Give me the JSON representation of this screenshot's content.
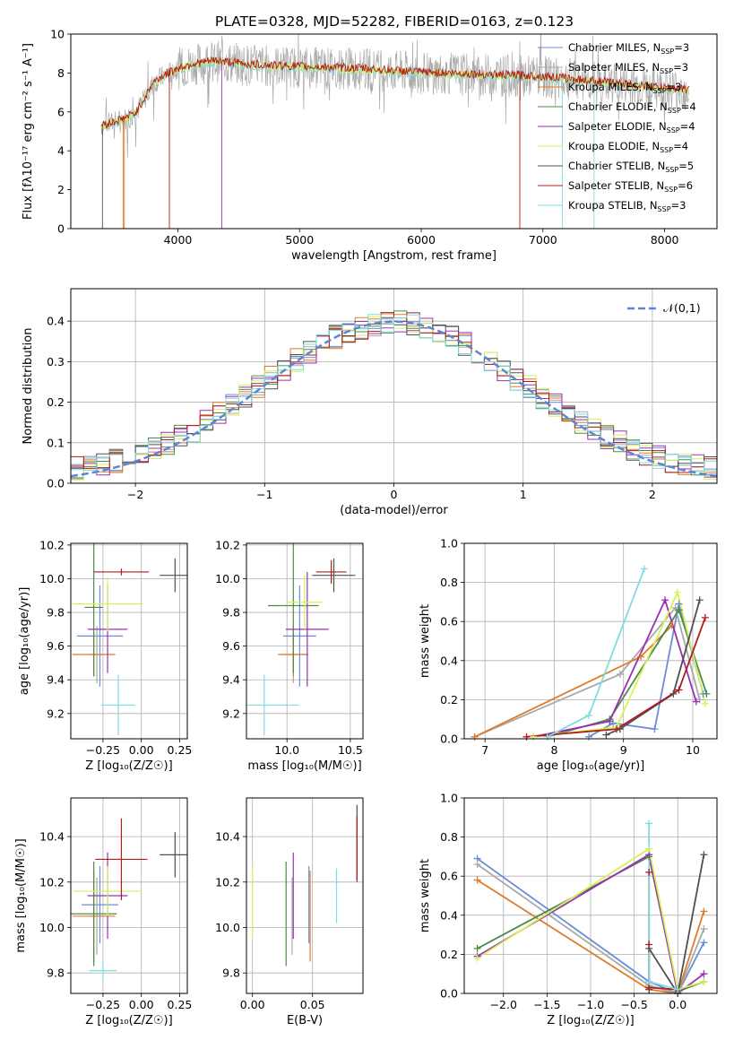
{
  "figure": {
    "title": "PLATE=0328, MJD=52282, FIBERID=0163, z=0.123"
  },
  "series_styles": [
    {
      "name": "Chabrier MILES",
      "suffix": "=3",
      "color": "#6a8fd6"
    },
    {
      "name": "Salpeter MILES",
      "suffix": "=3",
      "color": "#a9a9a9"
    },
    {
      "name": "Kroupa MILES",
      "suffix": "=3",
      "color": "#e07b28"
    },
    {
      "name": "Chabrier ELODIE",
      "suffix": "=4",
      "color": "#4c8a4c"
    },
    {
      "name": "Salpeter ELODIE",
      "suffix": "=4",
      "color": "#9b30b0"
    },
    {
      "name": "Kroupa ELODIE",
      "suffix": "=4",
      "color": "#d7f05a"
    },
    {
      "name": "Chabrier STELIB",
      "suffix": "=5",
      "color": "#505050"
    },
    {
      "name": "Salpeter STELIB",
      "suffix": "=6",
      "color": "#b01c1c"
    },
    {
      "name": "Kroupa STELIB",
      "suffix": "=3",
      "color": "#7fdce0"
    }
  ],
  "chart_data": [
    {
      "id": "spectrum",
      "type": "line",
      "xlabel": "wavelength [Angstrom, rest frame]",
      "ylabel": "Flux [fλ10⁻¹⁷ erg cm⁻² s⁻¹ A⁻¹]",
      "xlim": [
        3120,
        8430
      ],
      "ylim": [
        0,
        10
      ],
      "xticks": [
        4000,
        5000,
        6000,
        7000,
        8000
      ],
      "yticks": [
        0,
        2,
        4,
        6,
        8,
        10
      ],
      "legend_position": "top-right",
      "legend_subscript": "SSP",
      "legend_prefix": "N",
      "continuum": [
        [
          3370,
          5.3
        ],
        [
          3450,
          5.4
        ],
        [
          3550,
          5.6
        ],
        [
          3650,
          5.9
        ],
        [
          3720,
          6.6
        ],
        [
          3800,
          7.5
        ],
        [
          3900,
          7.9
        ],
        [
          4000,
          8.2
        ],
        [
          4100,
          8.4
        ],
        [
          4300,
          8.6
        ],
        [
          4600,
          8.4
        ],
        [
          5000,
          8.3
        ],
        [
          5500,
          8.2
        ],
        [
          6000,
          8.0
        ],
        [
          6500,
          7.9
        ],
        [
          7000,
          7.8
        ],
        [
          7500,
          7.5
        ],
        [
          8000,
          7.2
        ],
        [
          8200,
          7.1
        ]
      ]
    },
    {
      "id": "residuals",
      "type": "histogram",
      "xlabel": "(data-model)/error",
      "ylabel": "Normed distribution",
      "xlim": [
        -2.5,
        2.5
      ],
      "ylim": [
        0,
        0.48
      ],
      "xticks": [
        -2,
        -1,
        0,
        1,
        2
      ],
      "yticks": [
        0.0,
        0.1,
        0.2,
        0.3,
        0.4
      ],
      "bins": [
        -2.5,
        2.5
      ],
      "bin_width": 0.1,
      "reference": {
        "name": "𝒩(0,1)",
        "mean": 0,
        "sigma": 1,
        "color": "#5b86d6"
      },
      "legend_position": "top-right"
    },
    {
      "id": "age_vs_Z",
      "type": "errorbar",
      "xlabel": "Z [log₁₀(Z/Z☉)]",
      "ylabel": "age  [log₁₀(age/yr)]",
      "xlim": [
        -0.46,
        0.3
      ],
      "ylim": [
        9.05,
        10.21
      ],
      "xticks": [
        -0.25,
        0.0,
        0.25
      ],
      "yticks": [
        9.2,
        9.4,
        9.6,
        9.8,
        10.0,
        10.2
      ],
      "points": [
        {
          "series": 0,
          "x": -0.27,
          "y": 9.66,
          "xerr": 0.15,
          "yerr": 0.3
        },
        {
          "series": 1,
          "x": -0.29,
          "y": 9.55,
          "xerr": 0.05,
          "yerr": 0.17
        },
        {
          "series": 2,
          "x": -0.31,
          "y": 9.55,
          "xerr": 0.14,
          "yerr": 0.13
        },
        {
          "series": 3,
          "x": -0.31,
          "y": 9.83,
          "xerr": 0.06,
          "yerr": 0.41
        },
        {
          "series": 4,
          "x": -0.22,
          "y": 9.7,
          "xerr": 0.13,
          "yerr": 0.26
        },
        {
          "series": 5,
          "x": -0.22,
          "y": 9.85,
          "xerr": 0.23,
          "yerr": 0.16
        },
        {
          "series": 6,
          "x": 0.22,
          "y": 10.02,
          "xerr": 0.1,
          "yerr": 0.1
        },
        {
          "series": 7,
          "x": -0.13,
          "y": 10.04,
          "xerr": 0.18,
          "yerr": 0.02
        },
        {
          "series": 8,
          "x": -0.15,
          "y": 9.25,
          "xerr": 0.11,
          "yerr": 0.18
        }
      ]
    },
    {
      "id": "age_vs_mass",
      "type": "errorbar",
      "xlabel": "mass [log₁₀(M/M☉)]",
      "ylabel": "",
      "xlim": [
        9.68,
        10.6
      ],
      "ylim": [
        9.05,
        10.21
      ],
      "xticks": [
        10.0,
        10.5
      ],
      "yticks": [
        9.2,
        9.4,
        9.6,
        9.8,
        10.0,
        10.2
      ],
      "points": [
        {
          "series": 0,
          "x": 10.1,
          "y": 9.66,
          "xerr": 0.13,
          "yerr": 0.3
        },
        {
          "series": 1,
          "x": 10.05,
          "y": 9.55,
          "xerr": 0.1,
          "yerr": 0.17
        },
        {
          "series": 2,
          "x": 10.05,
          "y": 9.55,
          "xerr": 0.12,
          "yerr": 0.13
        },
        {
          "series": 3,
          "x": 10.05,
          "y": 9.84,
          "xerr": 0.2,
          "yerr": 0.4
        },
        {
          "series": 4,
          "x": 10.16,
          "y": 9.7,
          "xerr": 0.17,
          "yerr": 0.34
        },
        {
          "series": 5,
          "x": 10.14,
          "y": 9.86,
          "xerr": 0.14,
          "yerr": 0.16
        },
        {
          "series": 6,
          "x": 10.37,
          "y": 10.02,
          "xerr": 0.17,
          "yerr": 0.1
        },
        {
          "series": 7,
          "x": 10.35,
          "y": 10.04,
          "xerr": 0.12,
          "yerr": 0.07
        },
        {
          "series": 8,
          "x": 9.82,
          "y": 9.25,
          "xerr": 0.27,
          "yerr": 0.18
        }
      ]
    },
    {
      "id": "weights_vs_age",
      "type": "line",
      "xlabel": "age  [log₁₀(age/yr)]",
      "ylabel": "mass weight",
      "xlim": [
        6.7,
        10.35
      ],
      "ylim": [
        0,
        1
      ],
      "xticks": [
        7,
        8,
        9,
        10
      ],
      "yticks": [
        0.0,
        0.2,
        0.4,
        0.6,
        0.8,
        1.0
      ],
      "series": [
        {
          "series": 0,
          "x": [
            8.5,
            8.85,
            9.45,
            9.8,
            10.15
          ],
          "y": [
            0.01,
            0.08,
            0.05,
            0.69,
            0.23
          ]
        },
        {
          "series": 1,
          "x": [
            6.85,
            8.95,
            9.75,
            10.1
          ],
          "y": [
            0.01,
            0.33,
            0.67,
            0.2
          ]
        },
        {
          "series": 2,
          "x": [
            6.85,
            9.25,
            9.7
          ],
          "y": [
            0.01,
            0.42,
            0.58
          ]
        },
        {
          "series": 3,
          "x": [
            7.9,
            8.8,
            9.8,
            10.2
          ],
          "y": [
            0.01,
            0.1,
            0.66,
            0.23
          ]
        },
        {
          "series": 4,
          "x": [
            7.7,
            8.8,
            9.6,
            10.05
          ],
          "y": [
            0.01,
            0.09,
            0.71,
            0.19
          ]
        },
        {
          "series": 5,
          "x": [
            7.7,
            8.9,
            9.78,
            10.18
          ],
          "y": [
            0.01,
            0.06,
            0.75,
            0.18
          ]
        },
        {
          "series": 6,
          "x": [
            8.75,
            8.95,
            9.72,
            10.1
          ],
          "y": [
            0.02,
            0.05,
            0.23,
            0.71
          ]
        },
        {
          "series": 7,
          "x": [
            7.6,
            8.9,
            9.8,
            10.18
          ],
          "y": [
            0.01,
            0.05,
            0.25,
            0.62
          ]
        },
        {
          "series": 8,
          "x": [
            7.9,
            8.5,
            9.3
          ],
          "y": [
            0.01,
            0.12,
            0.87
          ]
        }
      ]
    },
    {
      "id": "mass_vs_Z",
      "type": "errorbar",
      "xlabel": "Z [log₁₀(Z/Z☉)]",
      "ylabel": "mass [log₁₀(M/M☉)]",
      "xlim": [
        -0.46,
        0.3
      ],
      "ylim": [
        9.71,
        10.57
      ],
      "xticks": [
        -0.25,
        0.0,
        0.25
      ],
      "yticks": [
        9.8,
        10.0,
        10.2,
        10.4
      ],
      "points": [
        {
          "series": 0,
          "x": -0.27,
          "y": 10.1,
          "xerr": 0.12,
          "yerr": 0.17
        },
        {
          "series": 1,
          "x": -0.29,
          "y": 10.05,
          "xerr": 0.05,
          "yerr": 0.17
        },
        {
          "series": 2,
          "x": -0.31,
          "y": 10.05,
          "xerr": 0.14,
          "yerr": 0.2
        },
        {
          "series": 3,
          "x": -0.31,
          "y": 10.06,
          "xerr": 0.15,
          "yerr": 0.23
        },
        {
          "series": 4,
          "x": -0.22,
          "y": 10.14,
          "xerr": 0.13,
          "yerr": 0.19
        },
        {
          "series": 5,
          "x": -0.22,
          "y": 10.16,
          "xerr": 0.22,
          "yerr": 0.11
        },
        {
          "series": 6,
          "x": 0.22,
          "y": 10.32,
          "xerr": 0.1,
          "yerr": 0.1
        },
        {
          "series": 7,
          "x": -0.13,
          "y": 10.3,
          "xerr": 0.17,
          "yerr": 0.18
        },
        {
          "series": 8,
          "x": -0.25,
          "y": 9.81,
          "xerr": 0.09,
          "yerr": 0.04
        }
      ]
    },
    {
      "id": "mass_vs_EBV",
      "type": "errorbar",
      "xlabel": "E(B-V)",
      "ylabel": "",
      "xlim": [
        -0.005,
        0.092
      ],
      "ylim": [
        9.71,
        10.57
      ],
      "xticks": [
        0.0,
        0.05
      ],
      "xtick_labels": [
        "0.00",
        "0.05"
      ],
      "yticks": [
        9.8,
        10.0,
        10.2,
        10.4
      ],
      "points": [
        {
          "series": 0,
          "x": 0.047,
          "y": 10.1,
          "xerr": 0,
          "yerr": 0.17
        },
        {
          "series": 1,
          "x": 0.033,
          "y": 10.05,
          "xerr": 0,
          "yerr": 0.17
        },
        {
          "series": 2,
          "x": 0.048,
          "y": 10.05,
          "xerr": 0,
          "yerr": 0.2
        },
        {
          "series": 3,
          "x": 0.028,
          "y": 10.06,
          "xerr": 0,
          "yerr": 0.23
        },
        {
          "series": 4,
          "x": 0.034,
          "y": 10.14,
          "xerr": 0,
          "yerr": 0.19
        },
        {
          "series": 5,
          "x": 0.0,
          "y": 10.11,
          "xerr": 0,
          "yerr": 0.16
        },
        {
          "series": 6,
          "x": 0.087,
          "y": 10.37,
          "xerr": 0,
          "yerr": 0.17
        },
        {
          "series": 7,
          "x": 0.087,
          "y": 10.35,
          "xerr": 0,
          "yerr": 0.14
        },
        {
          "series": 8,
          "x": 0.07,
          "y": 10.14,
          "xerr": 0,
          "yerr": 0.12
        }
      ]
    },
    {
      "id": "weights_vs_Z",
      "type": "line",
      "xlabel": "Z [log₁₀(Z/Z☉)]",
      "ylabel": "mass weight",
      "xlim": [
        -2.45,
        0.45
      ],
      "ylim": [
        0,
        1
      ],
      "xticks": [
        -2.0,
        -1.5,
        -1.0,
        -0.5,
        0.0
      ],
      "yticks": [
        0.0,
        0.2,
        0.4,
        0.6,
        0.8,
        1.0
      ],
      "series": [
        {
          "series": 0,
          "x": [
            -2.3,
            -0.33,
            0.0,
            0.3
          ],
          "y": [
            0.69,
            0.06,
            0.0,
            0.26
          ]
        },
        {
          "series": 1,
          "x": [
            -2.3,
            -0.33,
            0.0,
            0.3
          ],
          "y": [
            0.66,
            0.04,
            0.0,
            0.33
          ]
        },
        {
          "series": 2,
          "x": [
            -2.3,
            -0.33,
            0.0,
            0.3
          ],
          "y": [
            0.58,
            0.02,
            0.0,
            0.42
          ]
        },
        {
          "series": 3,
          "x": [
            -2.3,
            -0.33,
            0.0,
            0.3
          ],
          "y": [
            0.23,
            0.7,
            0.01,
            0.06
          ]
        },
        {
          "series": 4,
          "x": [
            -2.3,
            -0.33,
            0.0,
            0.3
          ],
          "y": [
            0.19,
            0.71,
            0.0,
            0.1
          ]
        },
        {
          "series": 5,
          "x": [
            -2.3,
            -0.33,
            0.0,
            0.3
          ],
          "y": [
            0.18,
            0.74,
            0.02,
            0.06
          ]
        },
        {
          "series": 6,
          "x": [
            -0.33,
            -0.33,
            0.0,
            0.3
          ],
          "y": [
            0.02,
            0.23,
            0.0,
            0.71
          ]
        },
        {
          "series": 7,
          "x": [
            -0.33,
            -0.33,
            -0.33,
            0.0
          ],
          "y": [
            0.62,
            0.25,
            0.03,
            0.02
          ]
        },
        {
          "series": 8,
          "x": [
            -0.33,
            -0.33,
            0.0
          ],
          "y": [
            0.87,
            0.06,
            0.02
          ]
        }
      ]
    }
  ]
}
